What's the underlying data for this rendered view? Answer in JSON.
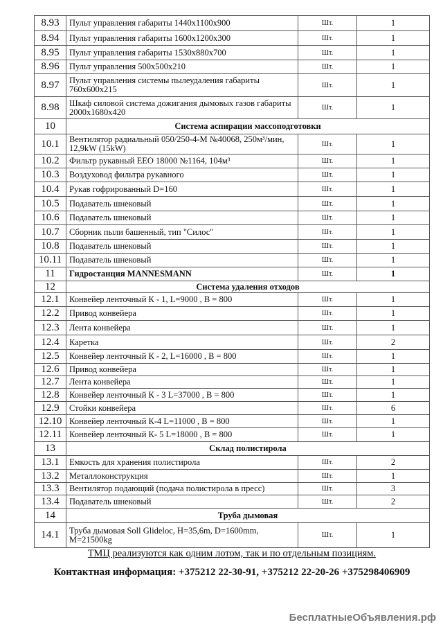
{
  "rows": [
    {
      "n": "8.93",
      "name": "Пульт управления габариты 1440х1100х900",
      "unit": "Шт.",
      "qty": "1"
    },
    {
      "n": "8.94",
      "name": "Пульт управления габариты 1600х1200х300",
      "unit": "Шт.",
      "qty": "1"
    },
    {
      "n": "8.95",
      "name": "Пульт управления габариты 1530х880х700",
      "unit": "Шт.",
      "qty": "1"
    },
    {
      "n": "8.96",
      "name": "Пульт управления 500х500х210",
      "unit": "Шт.",
      "qty": "1"
    },
    {
      "n": "8.97",
      "name": "Пульт управления системы пылеудаления габариты 760х600х215",
      "unit": "Шт.",
      "qty": "1"
    },
    {
      "n": "8.98",
      "name": "Шкаф силовой система дожигания дымовых газов габариты 2000х1680х420",
      "unit": "Шт.",
      "qty": "1"
    },
    {
      "n": "10",
      "section": "Система аспирации массоподготовки"
    },
    {
      "n": "10.1",
      "name": "Вентилятор радиальный 050/250-4-M №40068, 250м³/мин, 12,9kW (15kW)",
      "unit": "Шт.",
      "qty": "1"
    },
    {
      "n": "10.2",
      "name": "Фильтр рукавный EEO 18000 №1164, 104м³",
      "unit": "Шт.",
      "qty": "1"
    },
    {
      "n": "10.3",
      "name": "Воздуховод фильтра рукавного",
      "unit": "Шт.",
      "qty": "1"
    },
    {
      "n": "10.4",
      "name": "Рукав гофрированный D=160",
      "unit": "Шт.",
      "qty": "1"
    },
    {
      "n": "10.5",
      "name": "Подаватель шнековый",
      "unit": "Шт.",
      "qty": "1"
    },
    {
      "n": "10.6",
      "name": "Подаватель шнековый",
      "unit": "Шт.",
      "qty": "1"
    },
    {
      "n": "10.7",
      "name": "Сборник пыли башенный, тип \"Силос\"",
      "unit": "Шт.",
      "qty": "1"
    },
    {
      "n": "10.8",
      "name": "Подаватель шнековый",
      "unit": "Шт.",
      "qty": "1"
    },
    {
      "n": "10.11",
      "name": "Подаватель шнековый",
      "unit": "Шт.",
      "qty": "1"
    },
    {
      "n": "11",
      "name": "Гидростанция MANNESMANN",
      "unit": "Шт.",
      "qty": "1",
      "bold": true
    },
    {
      "n": "12",
      "section": "Система удаления отходов"
    },
    {
      "n": "12.1",
      "name": "Конвейер ленточный К - 1, L=9000 , B = 800",
      "unit": "Шт.",
      "qty": "1"
    },
    {
      "n": "12.2",
      "name": "Привод конвейера",
      "unit": "Шт.",
      "qty": "1"
    },
    {
      "n": "12.3",
      "name": "Лента конвейера",
      "unit": "Шт.",
      "qty": "1"
    },
    {
      "n": "12.4",
      "name": "Каретка",
      "unit": "Шт.",
      "qty": "2"
    },
    {
      "n": "12.5",
      "name": "Конвейер ленточный К - 2, L=16000 , B = 800",
      "unit": "Шт.",
      "qty": "1"
    },
    {
      "n": "12.6",
      "name": "Привод конвейера",
      "unit": "Шт.",
      "qty": "1"
    },
    {
      "n": "12.7",
      "name": "Лента конвейера",
      "unit": "Шт.",
      "qty": "1"
    },
    {
      "n": "12.8",
      "name": "Конвейер ленточный К - 3 L=37000 , B = 800",
      "unit": "Шт.",
      "qty": "1"
    },
    {
      "n": "12.9",
      "name": "Стойки конвейера",
      "unit": "Шт.",
      "qty": "6"
    },
    {
      "n": "12.10",
      "name": "Конвейер ленточный К-4 L=11000 , B = 800",
      "unit": "Шт.",
      "qty": "1"
    },
    {
      "n": "12.11",
      "name": "Конвейер ленточный К- 5 L=18000 , B = 800",
      "unit": "Шт.",
      "qty": "1"
    },
    {
      "n": "13",
      "section": "Склад полистирола"
    },
    {
      "n": "13.1",
      "name": "Емкость для хранения полистирола",
      "unit": "Шт.",
      "qty": "2"
    },
    {
      "n": "13.2",
      "name": "Металлоконструкция",
      "unit": "Шт.",
      "qty": "1"
    },
    {
      "n": "13.3",
      "name": "Вентилятор подающий (подача полистирола в пресс)",
      "unit": "Шт.",
      "qty": "3"
    },
    {
      "n": "13.4",
      "name": "Подаватель шнековый",
      "unit": "Шт.",
      "qty": "2"
    },
    {
      "n": "14",
      "section": "Труба дымовая"
    },
    {
      "n": "14.1",
      "name": "Труба дымовая Soll Glideloc, H=35,6m, D=1600mm, M=21500kg",
      "unit": "Шт.",
      "qty": "1"
    }
  ],
  "footer": {
    "note": "ТМЦ реализуются как одним лотом, так и по отдельным позициям.",
    "contact": "Контактная информация: +375212 22-30-91, +375212 22-20-26 +375298406909"
  },
  "watermark": "БесплатныеОбъявления.рф"
}
